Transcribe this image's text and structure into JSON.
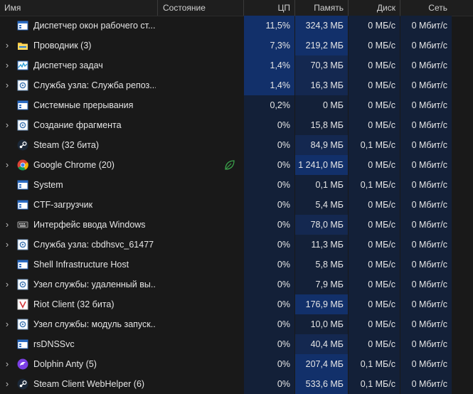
{
  "header": {
    "name": "Имя",
    "status": "Состояние",
    "cpu": "ЦП",
    "memory": "Память",
    "disk": "Диск",
    "network": "Сеть"
  },
  "colors": {
    "background": "#191919",
    "heat_strong": "#12306a",
    "heat_medium": "#142850",
    "heat_dark": "#132038",
    "eco_leaf": "#3aa14a"
  },
  "rows": [
    {
      "name": "Диспетчер окон рабочего ст...",
      "icon": "window-app-icon",
      "expandable": false,
      "cpu": "11,5%",
      "mem": "324,3 МБ",
      "disk": "0 МБ/с",
      "net": "0 Мбит/с",
      "cpu_heat": "strong",
      "mem_heat": "strong"
    },
    {
      "name": "Проводник (3)",
      "icon": "folder-icon",
      "expandable": true,
      "cpu": "7,3%",
      "mem": "219,2 МБ",
      "disk": "0 МБ/с",
      "net": "0 Мбит/с",
      "cpu_heat": "strong",
      "mem_heat": "strong"
    },
    {
      "name": "Диспетчер задач",
      "icon": "task-manager-icon",
      "expandable": true,
      "cpu": "1,4%",
      "mem": "70,3 МБ",
      "disk": "0 МБ/с",
      "net": "0 Мбит/с",
      "cpu_heat": "strong",
      "mem_heat": "medium"
    },
    {
      "name": "Служба узла: Служба репоз...",
      "icon": "gear-icon",
      "expandable": true,
      "cpu": "1,4%",
      "mem": "16,3 МБ",
      "disk": "0 МБ/с",
      "net": "0 Мбит/с",
      "cpu_heat": "strong",
      "mem_heat": "medium"
    },
    {
      "name": "Системные прерывания",
      "icon": "window-app-icon",
      "expandable": false,
      "cpu": "0,2%",
      "mem": "0 МБ",
      "disk": "0 МБ/с",
      "net": "0 Мбит/с",
      "cpu_heat": "dark",
      "mem_heat": "dark"
    },
    {
      "name": "Создание фрагмента",
      "icon": "gear-icon",
      "expandable": true,
      "cpu": "0%",
      "mem": "15,8 МБ",
      "disk": "0 МБ/с",
      "net": "0 Мбит/с",
      "cpu_heat": "dark",
      "mem_heat": "dark"
    },
    {
      "name": "Steam (32 бита)",
      "icon": "steam-icon",
      "expandable": false,
      "cpu": "0%",
      "mem": "84,9 МБ",
      "disk": "0,1 МБ/с",
      "net": "0 Мбит/с",
      "cpu_heat": "dark",
      "mem_heat": "medium"
    },
    {
      "name": "Google Chrome (20)",
      "icon": "chrome-icon",
      "expandable": true,
      "eco": true,
      "cpu": "0%",
      "mem": "1 241,0 МБ",
      "disk": "0 МБ/с",
      "net": "0 Мбит/с",
      "cpu_heat": "dark",
      "mem_heat": "strong"
    },
    {
      "name": "System",
      "icon": "window-app-icon",
      "expandable": false,
      "cpu": "0%",
      "mem": "0,1 МБ",
      "disk": "0,1 МБ/с",
      "net": "0 Мбит/с",
      "cpu_heat": "dark",
      "mem_heat": "dark"
    },
    {
      "name": "CTF-загрузчик",
      "icon": "window-app-icon",
      "expandable": false,
      "cpu": "0%",
      "mem": "5,4 МБ",
      "disk": "0 МБ/с",
      "net": "0 Мбит/с",
      "cpu_heat": "dark",
      "mem_heat": "dark"
    },
    {
      "name": "Интерфейс ввода Windows",
      "icon": "keyboard-icon",
      "expandable": true,
      "cpu": "0%",
      "mem": "78,0 МБ",
      "disk": "0 МБ/с",
      "net": "0 Мбит/с",
      "cpu_heat": "dark",
      "mem_heat": "medium"
    },
    {
      "name": "Служба узла: cbdhsvc_61477",
      "icon": "gear-icon",
      "expandable": true,
      "cpu": "0%",
      "mem": "11,3 МБ",
      "disk": "0 МБ/с",
      "net": "0 Мбит/с",
      "cpu_heat": "dark",
      "mem_heat": "dark"
    },
    {
      "name": "Shell Infrastructure Host",
      "icon": "window-app-icon",
      "expandable": false,
      "cpu": "0%",
      "mem": "5,8 МБ",
      "disk": "0 МБ/с",
      "net": "0 Мбит/с",
      "cpu_heat": "dark",
      "mem_heat": "dark"
    },
    {
      "name": "Узел службы: удаленный вы...",
      "icon": "gear-icon",
      "expandable": true,
      "cpu": "0%",
      "mem": "7,9 МБ",
      "disk": "0 МБ/с",
      "net": "0 Мбит/с",
      "cpu_heat": "dark",
      "mem_heat": "dark"
    },
    {
      "name": "Riot Client (32 бита)",
      "icon": "riot-icon",
      "expandable": false,
      "cpu": "0%",
      "mem": "176,9 МБ",
      "disk": "0 МБ/с",
      "net": "0 Мбит/с",
      "cpu_heat": "dark",
      "mem_heat": "strong"
    },
    {
      "name": "Узел службы: модуль запуск...",
      "icon": "gear-icon",
      "expandable": true,
      "cpu": "0%",
      "mem": "10,0 МБ",
      "disk": "0 МБ/с",
      "net": "0 Мбит/с",
      "cpu_heat": "dark",
      "mem_heat": "dark"
    },
    {
      "name": "rsDNSSvc",
      "icon": "window-app-icon",
      "expandable": false,
      "cpu": "0%",
      "mem": "40,4 МБ",
      "disk": "0 МБ/с",
      "net": "0 Мбит/с",
      "cpu_heat": "dark",
      "mem_heat": "medium"
    },
    {
      "name": "Dolphin Anty (5)",
      "icon": "dolphin-icon",
      "expandable": true,
      "cpu": "0%",
      "mem": "207,4 МБ",
      "disk": "0,1 МБ/с",
      "net": "0 Мбит/с",
      "cpu_heat": "dark",
      "mem_heat": "strong"
    },
    {
      "name": "Steam Client WebHelper (6)",
      "icon": "steam-icon",
      "expandable": true,
      "cpu": "0%",
      "mem": "533,6 МБ",
      "disk": "0,1 МБ/с",
      "net": "0 Мбит/с",
      "cpu_heat": "dark",
      "mem_heat": "strong"
    }
  ]
}
